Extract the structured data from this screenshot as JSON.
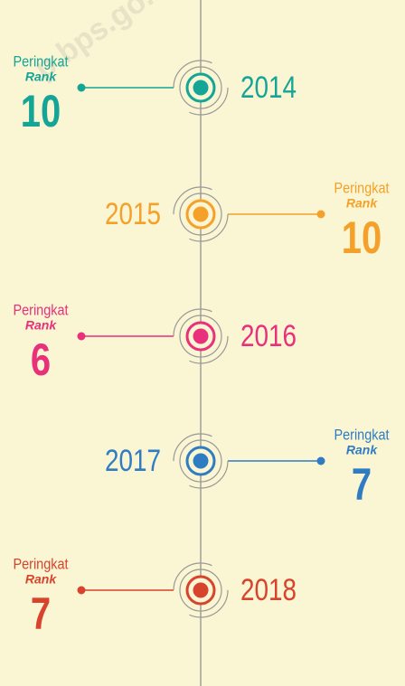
{
  "watermark": "p.bps.go.",
  "items": [
    {
      "year": "2014",
      "label": "Peringkat",
      "sublabel": "Rank",
      "rank": "10",
      "color": "#15a596"
    },
    {
      "year": "2015",
      "label": "Peringkat",
      "sublabel": "Rank",
      "rank": "10",
      "color": "#f4a029"
    },
    {
      "year": "2016",
      "label": "Peringkat",
      "sublabel": "Rank",
      "rank": "6",
      "color": "#e8307b"
    },
    {
      "year": "2017",
      "label": "Peringkat",
      "sublabel": "Rank",
      "rank": "7",
      "color": "#2f7cc3"
    },
    {
      "year": "2018",
      "label": "Peringkat",
      "sublabel": "Rank",
      "rank": "7",
      "color": "#d8432d"
    }
  ]
}
